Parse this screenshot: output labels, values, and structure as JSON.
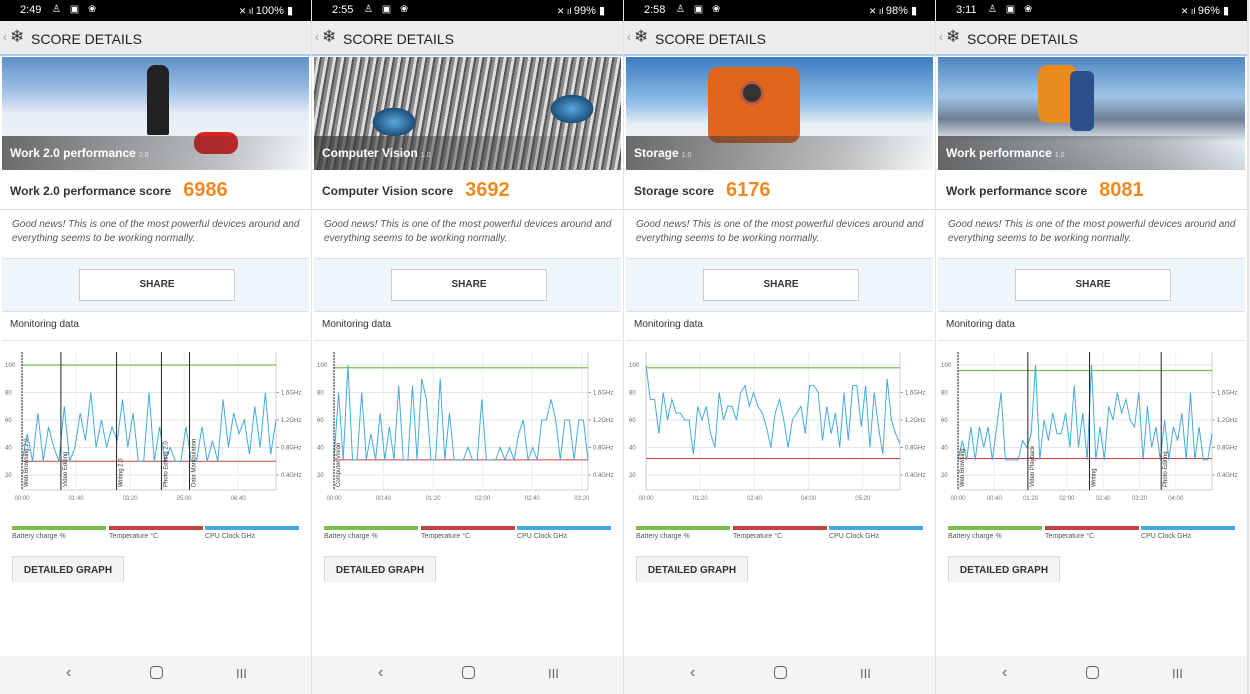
{
  "common": {
    "header_title": "SCORE DETAILS",
    "message": "Good news! This is one of the most powerful devices around and everything seems to be working normally.",
    "share_label": "SHARE",
    "monitoring_label": "Monitoring data",
    "detailed_graph_label": "DETAILED GRAPH",
    "legend": [
      {
        "label": "Battery charge %",
        "color": "#7ac143"
      },
      {
        "label": "Temperature °C",
        "color": "#c94040"
      },
      {
        "label": "CPU Clock GHz",
        "color": "#44aadd"
      }
    ],
    "y_left_ticks": [
      "100",
      "80",
      "60",
      "40",
      "20"
    ],
    "y_right_ticks": [
      "1.6GHz",
      "1.2GHz",
      "0.8GHz",
      "0.4GHz"
    ],
    "nav_icons": [
      "back-icon",
      "home-icon",
      "recents-icon"
    ]
  },
  "panels": [
    {
      "status": {
        "time": "2:49",
        "right": "100%"
      },
      "hero_caption": "Work 2.0 performance",
      "hero_version": "2.0",
      "score_label": "Work 2.0 performance score",
      "score": "6986",
      "chart_data": {
        "type": "line",
        "x_ticks": [
          "00:00",
          "01:40",
          "03:20",
          "05:00",
          "06:40"
        ],
        "x_range_s": [
          0,
          470
        ],
        "ylim": [
          0,
          110
        ],
        "events": [
          {
            "label": "Web Browsing 2.0",
            "t": 0
          },
          {
            "label": "Video Editing",
            "t": 72
          },
          {
            "label": "Writing 2.0",
            "t": 175
          },
          {
            "label": "Photo Editing 2.0",
            "t": 258
          },
          {
            "label": "Data Manipulation",
            "t": 310
          }
        ],
        "battery": 100,
        "temperature": 30,
        "cpu_ghz": [
          0.6,
          1.0,
          0.6,
          1.3,
          0.6,
          1.1,
          0.8,
          0.6,
          1.4,
          0.6,
          0.8,
          1.3,
          0.9,
          1.6,
          0.8,
          1.2,
          0.8,
          1.1,
          0.9,
          1.5,
          0.8,
          1.3,
          0.6,
          0.6,
          1.6,
          0.6,
          1.1,
          0.6,
          0.8,
          0.6,
          0.6,
          1.1,
          0.6,
          0.6,
          1.1,
          0.6,
          0.9,
          0.6,
          1.5,
          0.8,
          1.3,
          1.0,
          1.2,
          0.7,
          1.4,
          0.8,
          1.6,
          0.7,
          1.2
        ]
      }
    },
    {
      "status": {
        "time": "2:55",
        "right": "99%"
      },
      "hero_caption": "Computer Vision",
      "hero_version": "1.0",
      "score_label": "Computer Vision score",
      "score": "3692",
      "chart_data": {
        "type": "line",
        "x_ticks": [
          "00:00",
          "00:40",
          "01:20",
          "02:00",
          "02:40",
          "03:20"
        ],
        "x_range_s": [
          0,
          205
        ],
        "ylim": [
          0,
          110
        ],
        "events": [
          {
            "label": "Computer Vision",
            "t": 0
          }
        ],
        "battery": 98,
        "temperature": 31,
        "cpu_ghz": [
          0.62,
          1.6,
          0.62,
          2.0,
          0.62,
          0.62,
          1.6,
          0.62,
          1.0,
          0.62,
          1.3,
          0.62,
          1.1,
          0.62,
          1.7,
          0.62,
          0.62,
          1.7,
          0.62,
          1.8,
          1.5,
          0.62,
          0.62,
          1.8,
          0.62,
          1.3,
          0.62,
          0.62,
          0.62,
          0.8,
          0.62,
          0.62,
          1.5,
          0.62,
          0.62,
          0.62,
          0.8,
          0.62,
          0.8,
          0.62,
          1.0,
          1.2,
          0.62,
          0.8,
          0.62,
          1.2,
          1.2,
          1.5,
          1.2,
          0.62,
          1.2,
          1.2,
          0.62,
          1.2,
          1.2,
          0.62
        ]
      }
    },
    {
      "status": {
        "time": "2:58",
        "right": "98%"
      },
      "hero_caption": "Storage",
      "hero_version": "1.0",
      "score_label": "Storage score",
      "score": "6176",
      "chart_data": {
        "type": "line",
        "x_ticks": [
          "00:00",
          "01:20",
          "02:40",
          "04:00",
          "05:20"
        ],
        "x_range_s": [
          0,
          375
        ],
        "ylim": [
          0,
          110
        ],
        "events": [],
        "battery": 98,
        "temperature": 32,
        "cpu_ghz": [
          2.0,
          1.5,
          1.5,
          1.0,
          1.6,
          1.2,
          1.5,
          1.3,
          1.3,
          1.2,
          1.2,
          0.7,
          1.4,
          1.2,
          1.4,
          1.0,
          0.8,
          1.6,
          1.2,
          1.4,
          1.4,
          1.2,
          1.6,
          1.7,
          1.4,
          1.6,
          1.4,
          1.3,
          1.1,
          0.8,
          1.3,
          1.5,
          1.2,
          0.8,
          1.2,
          1.3,
          1.4,
          1.0,
          1.7,
          1.7,
          1.6,
          0.9,
          1.4,
          1.0,
          1.3,
          0.8,
          1.6,
          0.9,
          1.7,
          1.7,
          1.1,
          1.7,
          0.8,
          1.6,
          1.1,
          0.7,
          1.8,
          1.2,
          1.0,
          0.85
        ]
      }
    },
    {
      "status": {
        "time": "3:11",
        "right": "96%"
      },
      "hero_caption": "Work performance",
      "hero_version": "1.0",
      "score_label": "Work performance score",
      "score": "8081",
      "chart_data": {
        "type": "line",
        "x_ticks": [
          "00:00",
          "00:40",
          "01:20",
          "02:00",
          "02:40",
          "03:20",
          "04:00"
        ],
        "x_range_s": [
          0,
          280
        ],
        "ylim": [
          0,
          110
        ],
        "events": [
          {
            "label": "Web Browsing",
            "t": 0
          },
          {
            "label": "Video Playback",
            "t": 77
          },
          {
            "label": "Writing",
            "t": 145
          },
          {
            "label": "Photo Editing",
            "t": 224
          }
        ],
        "battery": 96,
        "temperature": 32,
        "cpu_ghz": [
          0.62,
          0.9,
          0.62,
          1.1,
          0.62,
          1.1,
          0.8,
          1.1,
          0.62,
          1.1,
          1.6,
          0.62,
          0.62,
          0.62,
          0.62,
          0.9,
          0.8,
          1.0,
          2.0,
          0.62,
          1.2,
          0.9,
          1.3,
          1.0,
          1.0,
          1.3,
          0.8,
          1.7,
          0.8,
          1.3,
          0.62,
          2.0,
          0.62,
          1.1,
          0.62,
          1.4,
          1.2,
          1.6,
          1.3,
          1.5,
          1.2,
          1.1,
          1.6,
          0.62,
          1.4,
          0.8,
          1.1,
          0.62,
          1.2,
          0.62,
          1.1,
          0.9,
          1.3,
          0.62,
          1.6,
          0.62,
          1.1,
          0.62,
          0.62,
          1.0
        ]
      }
    }
  ]
}
